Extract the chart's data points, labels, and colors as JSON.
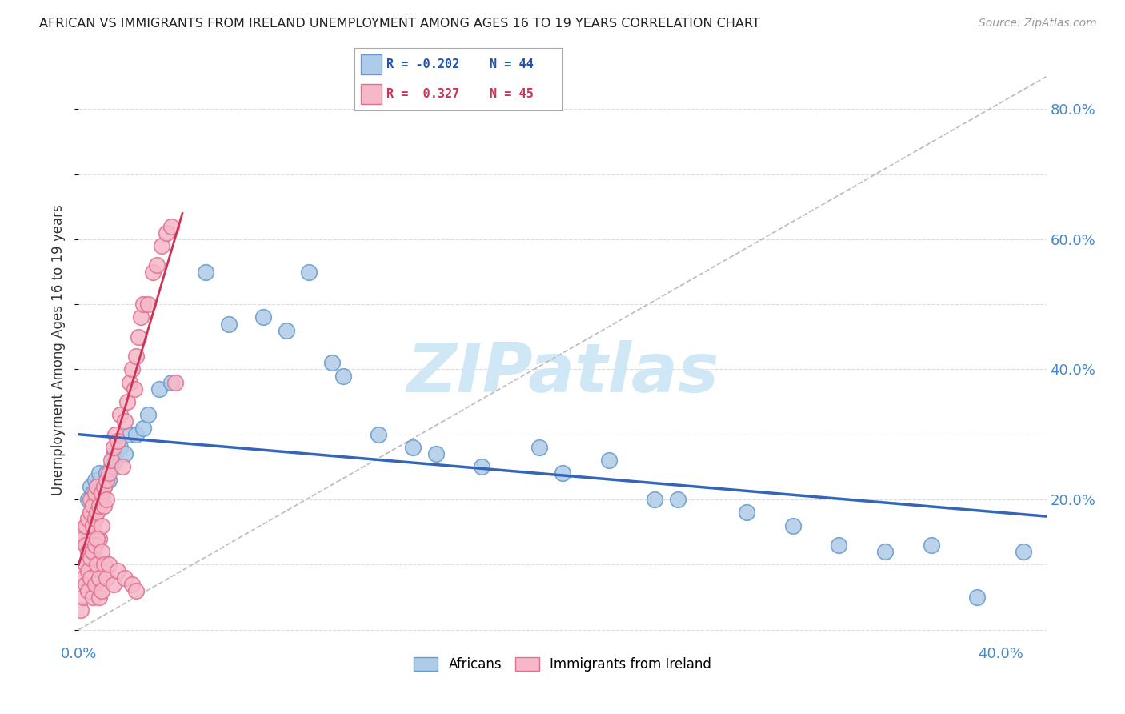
{
  "title": "AFRICAN VS IMMIGRANTS FROM IRELAND UNEMPLOYMENT AMONG AGES 16 TO 19 YEARS CORRELATION CHART",
  "source": "Source: ZipAtlas.com",
  "ylabel": "Unemployment Among Ages 16 to 19 years",
  "xlim": [
    0.0,
    0.42
  ],
  "ylim": [
    -0.02,
    0.88
  ],
  "legend_african_r": "-0.202",
  "legend_african_n": "44",
  "legend_ireland_r": "0.327",
  "legend_ireland_n": "45",
  "african_fill": "#aecce8",
  "african_edge": "#6699cc",
  "ireland_fill": "#f5b8c8",
  "ireland_edge": "#e07090",
  "trendline_african_color": "#3366bb",
  "trendline_ireland_color": "#cc3355",
  "refline_color": "#bbbbbb",
  "watermark_text": "ZIPatlas",
  "watermark_color": "#d0e8f5",
  "background_color": "#ffffff",
  "grid_color": "#dddddd",
  "tick_color": "#4488cc",
  "title_color": "#222222",
  "source_color": "#999999",
  "ylabel_color": "#333333",
  "africans_x": [
    0.004,
    0.005,
    0.006,
    0.007,
    0.008,
    0.009,
    0.01,
    0.011,
    0.012,
    0.013,
    0.014,
    0.015,
    0.016,
    0.018,
    0.02,
    0.022,
    0.025,
    0.028,
    0.03,
    0.035,
    0.04,
    0.055,
    0.065,
    0.08,
    0.09,
    0.1,
    0.11,
    0.115,
    0.13,
    0.145,
    0.155,
    0.175,
    0.2,
    0.21,
    0.23,
    0.25,
    0.26,
    0.29,
    0.31,
    0.33,
    0.35,
    0.37,
    0.39,
    0.41
  ],
  "africans_y": [
    0.2,
    0.22,
    0.21,
    0.23,
    0.22,
    0.24,
    0.2,
    0.22,
    0.24,
    0.23,
    0.25,
    0.27,
    0.26,
    0.28,
    0.27,
    0.3,
    0.3,
    0.31,
    0.33,
    0.37,
    0.38,
    0.55,
    0.47,
    0.48,
    0.46,
    0.55,
    0.41,
    0.39,
    0.3,
    0.28,
    0.27,
    0.25,
    0.28,
    0.24,
    0.26,
    0.2,
    0.2,
    0.18,
    0.16,
    0.13,
    0.12,
    0.13,
    0.05,
    0.12
  ],
  "ireland_x": [
    0.001,
    0.002,
    0.003,
    0.003,
    0.004,
    0.004,
    0.005,
    0.005,
    0.006,
    0.006,
    0.007,
    0.007,
    0.008,
    0.008,
    0.009,
    0.009,
    0.01,
    0.01,
    0.011,
    0.011,
    0.012,
    0.012,
    0.013,
    0.014,
    0.015,
    0.016,
    0.017,
    0.018,
    0.019,
    0.02,
    0.021,
    0.022,
    0.023,
    0.024,
    0.025,
    0.026,
    0.027,
    0.028,
    0.03,
    0.032,
    0.034,
    0.036,
    0.038,
    0.04,
    0.042
  ],
  "ireland_y": [
    0.15,
    0.14,
    0.13,
    0.16,
    0.17,
    0.12,
    0.18,
    0.2,
    0.16,
    0.19,
    0.17,
    0.21,
    0.18,
    0.22,
    0.19,
    0.14,
    0.21,
    0.16,
    0.22,
    0.19,
    0.23,
    0.2,
    0.24,
    0.26,
    0.28,
    0.3,
    0.29,
    0.33,
    0.25,
    0.32,
    0.35,
    0.38,
    0.4,
    0.37,
    0.42,
    0.45,
    0.48,
    0.5,
    0.5,
    0.55,
    0.56,
    0.59,
    0.61,
    0.62,
    0.38
  ],
  "ireland_cluster_x": [
    0.001,
    0.002,
    0.002,
    0.003,
    0.003,
    0.004,
    0.004,
    0.005,
    0.005,
    0.006,
    0.006,
    0.007,
    0.007,
    0.008,
    0.008,
    0.009,
    0.009,
    0.01,
    0.01,
    0.011,
    0.012,
    0.013,
    0.015,
    0.017,
    0.02,
    0.023,
    0.025
  ],
  "ireland_cluster_y": [
    0.03,
    0.05,
    0.08,
    0.07,
    0.1,
    0.06,
    0.09,
    0.08,
    0.11,
    0.05,
    0.12,
    0.07,
    0.13,
    0.1,
    0.14,
    0.08,
    0.05,
    0.12,
    0.06,
    0.1,
    0.08,
    0.1,
    0.07,
    0.09,
    0.08,
    0.07,
    0.06
  ]
}
